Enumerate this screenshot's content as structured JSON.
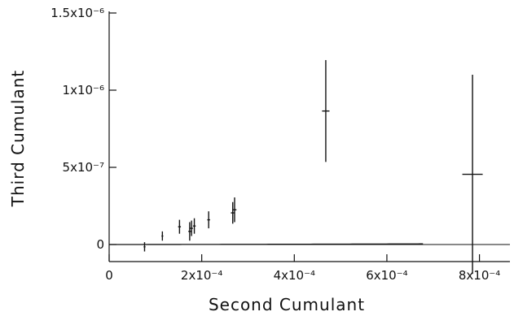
{
  "chart_data": {
    "type": "scatter",
    "xlabel": "Second Cumulant",
    "ylabel": "Third Cumulant",
    "xlim": [
      0,
      0.00085
    ],
    "ylim": [
      -1e-07,
      1.5e-06
    ],
    "x_ticks": [
      {
        "value": 0,
        "label": "0"
      },
      {
        "value": 0.0002,
        "label": "2x10⁻⁴"
      },
      {
        "value": 0.0004,
        "label": "4x10⁻⁴"
      },
      {
        "value": 0.0006,
        "label": "6x10⁻⁴"
      },
      {
        "value": 0.0008,
        "label": "8x10⁻⁴"
      }
    ],
    "y_ticks": [
      {
        "value": 0,
        "label": "0"
      },
      {
        "value": 5e-07,
        "label": "5x10⁻⁷"
      },
      {
        "value": 1e-06,
        "label": "1x10⁻⁶"
      },
      {
        "value": 1.5e-06,
        "label": "1.5x10⁻⁶"
      }
    ],
    "points": [
      {
        "x": 7.65e-05,
        "y": -1.5e-08,
        "xerr": 2e-06,
        "yerr": 3e-08
      },
      {
        "x": 0.000115,
        "y": 5.5e-08,
        "xerr": 2e-06,
        "yerr": 3e-08
      },
      {
        "x": 0.000152,
        "y": 1.15e-07,
        "xerr": 3e-06,
        "yerr": 4.5e-08
      },
      {
        "x": 0.000174,
        "y": 8.5e-08,
        "xerr": 3e-06,
        "yerr": 6e-08
      },
      {
        "x": 0.000178,
        "y": 1.05e-07,
        "xerr": 3e-06,
        "yerr": 5e-08
      },
      {
        "x": 0.000184,
        "y": 1.2e-07,
        "xerr": 3e-06,
        "yerr": 5e-08
      },
      {
        "x": 0.000215,
        "y": 1.6e-07,
        "xerr": 3e-06,
        "yerr": 5.5e-08
      },
      {
        "x": 0.000267,
        "y": 2.05e-07,
        "xerr": 4e-06,
        "yerr": 7e-08
      },
      {
        "x": 0.000271,
        "y": 2.25e-07,
        "xerr": 4e-06,
        "yerr": 8e-08
      },
      {
        "x": 0.000468,
        "y": 8.65e-07,
        "xerr": 8e-06,
        "yerr": 3.3e-07
      },
      {
        "x": 0.000785,
        "y": 4.55e-07,
        "xerr": 2.2e-05,
        "yerr": 6.45e-07
      }
    ],
    "fit_curve": {
      "type": "power",
      "a": 0.000237,
      "b": 1.5,
      "x_range": [
        0,
        0.000678
      ]
    },
    "reference_line_y": 0,
    "grid": false,
    "legend": "none"
  }
}
